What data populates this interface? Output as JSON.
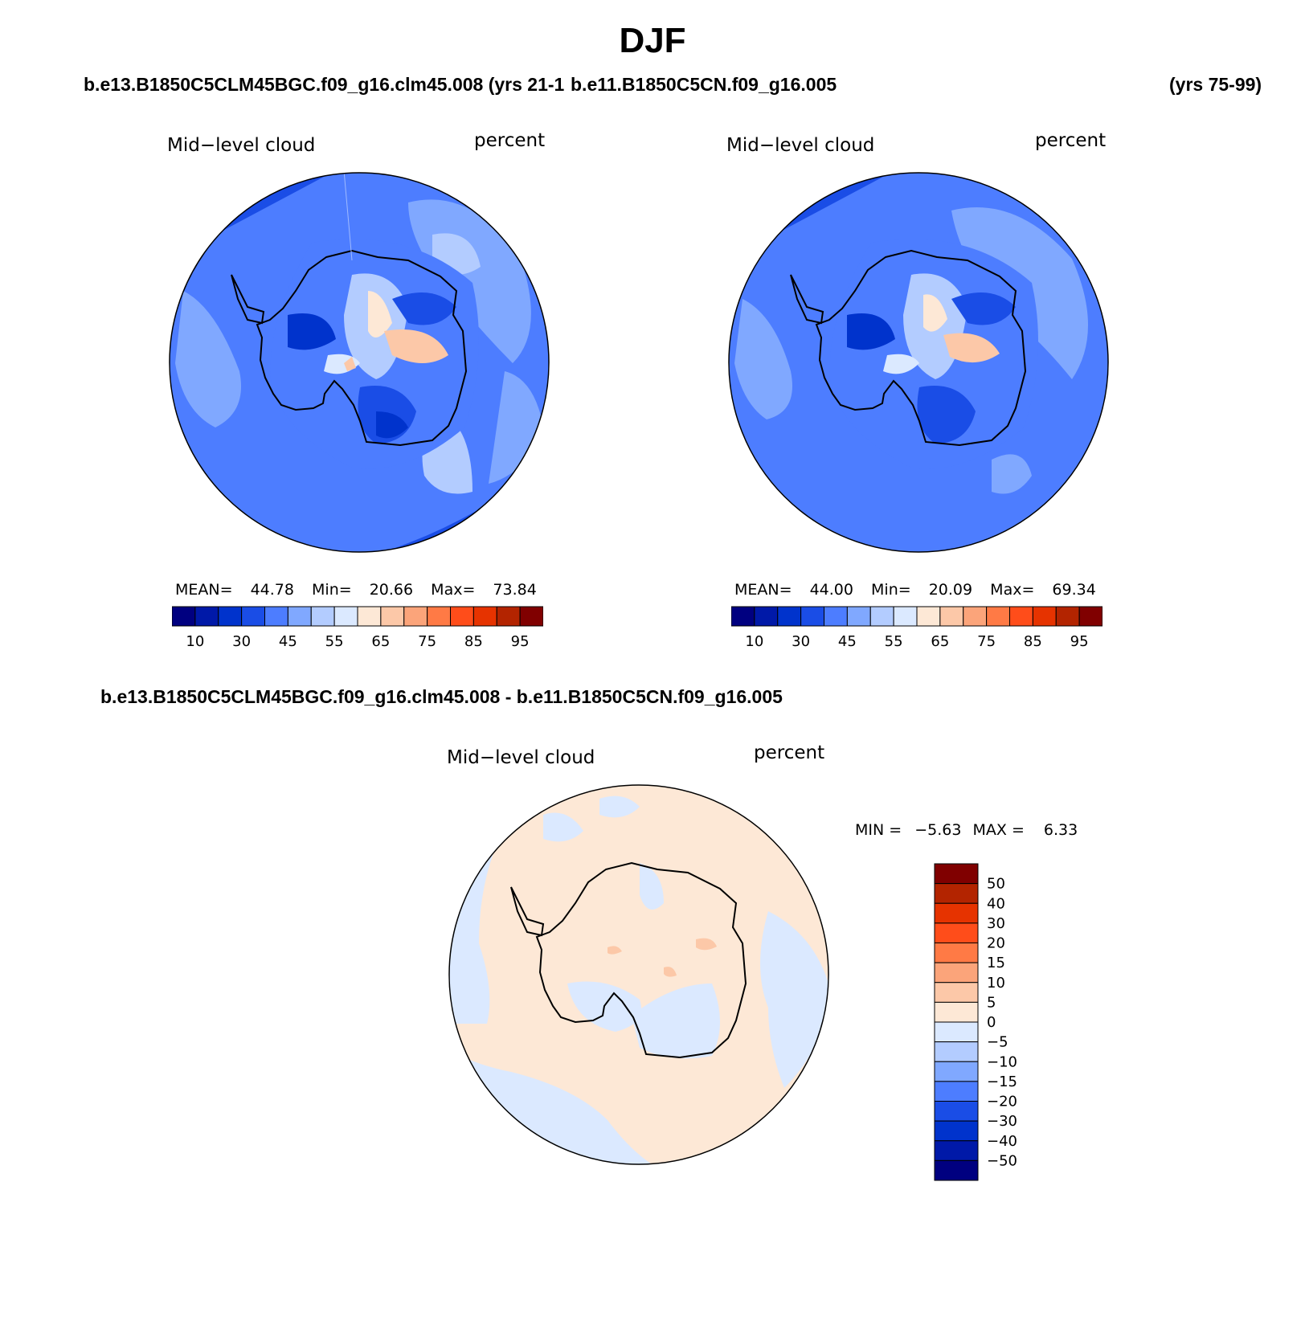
{
  "figure": {
    "season": "DJF",
    "case1": "b.e13.B1850C5CLM45BGC.f09_g16.clm45.008 (yrs 21-1",
    "case1_alt": "b.e11.B1850C5CN.f09_g16.005",
    "case2_years": "(yrs 75-99)",
    "diff_title": "b.e13.B1850C5CLM45BGC.f09_g16.clm45.008 - b.e11.B1850C5CN.f09_g16.005"
  },
  "panels": [
    {
      "variable": "Mid−level cloud",
      "units": "percent",
      "stats": {
        "mean_label": "MEAN=",
        "mean": "44.78",
        "min_label": "Min=",
        "min": "20.66",
        "max_label": "Max=",
        "max": "73.84"
      }
    },
    {
      "variable": "Mid−level cloud",
      "units": "percent",
      "stats": {
        "mean_label": "MEAN=",
        "mean": "44.00",
        "min_label": "Min=",
        "min": "20.09",
        "max_label": "Max=",
        "max": "69.34"
      }
    },
    {
      "variable": "Mid−level cloud",
      "units": "percent",
      "stats": {
        "min_label": "MIN =",
        "min": "−5.63",
        "max_label": "MAX =",
        "max": "6.33"
      }
    }
  ],
  "colorbars": {
    "abs": {
      "colors": [
        "#000080",
        "#0019a8",
        "#0033cc",
        "#1a4de6",
        "#4d7dff",
        "#80a8ff",
        "#b3ccff",
        "#dbe9ff",
        "#fde8d6",
        "#fcc8a8",
        "#fba47a",
        "#ff7a45",
        "#ff4d1a",
        "#e63300",
        "#b32400",
        "#800000"
      ],
      "labels": [
        "10",
        "30",
        "45",
        "55",
        "65",
        "75",
        "85",
        "95"
      ]
    },
    "diff": {
      "colors": [
        "#800000",
        "#b32400",
        "#e63300",
        "#ff4d1a",
        "#ff7a45",
        "#fba47a",
        "#fcc8a8",
        "#fde8d6",
        "#dbe9ff",
        "#b3ccff",
        "#80a8ff",
        "#4d7dff",
        "#1a4de6",
        "#0033cc",
        "#0019a8",
        "#000080"
      ],
      "labels": [
        "50",
        "40",
        "30",
        "20",
        "15",
        "10",
        "5",
        "0",
        "−5",
        "−10",
        "−15",
        "−20",
        "−30",
        "−40",
        "−50"
      ]
    }
  }
}
